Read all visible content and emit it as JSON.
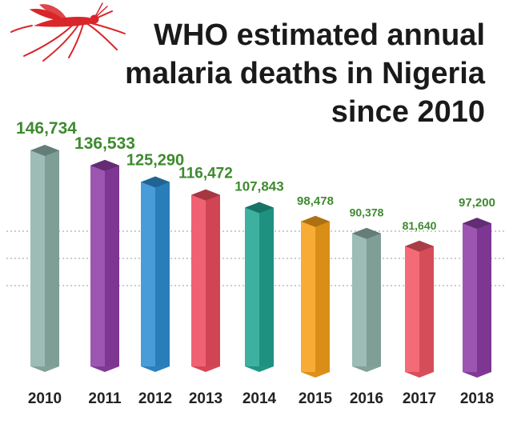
{
  "header": {
    "title_lines": [
      "WHO estimated annual",
      "malaria deaths in Nigeria",
      "since 2010"
    ],
    "icon": "mosquito-icon"
  },
  "colors": {
    "value_label": "#3e8a2f",
    "title": "#1a1a1a",
    "mosquito": "#d8262b",
    "gridline": "#9a9a9a"
  },
  "chart_data": {
    "type": "bar",
    "title": "WHO estimated annual malaria deaths in Nigeria since 2010",
    "categories": [
      "2010",
      "2011",
      "2012",
      "2013",
      "2014",
      "2015",
      "2016",
      "2017",
      "2018"
    ],
    "values": [
      146734,
      136533,
      125290,
      116472,
      107843,
      98478,
      90378,
      81640,
      97200
    ],
    "value_labels": [
      "146,734",
      "136,533",
      "125,290",
      "116,472",
      "107,843",
      "98,478",
      "90,378",
      "81,640",
      "97,200"
    ],
    "bar_colors": [
      "#8fb3ab",
      "#8e3fa6",
      "#2f8fd3",
      "#ee4d60",
      "#22a593",
      "#f7a11a",
      "#8fb3ab",
      "#f25765",
      "#8e3fa6"
    ],
    "ylim": [
      0,
      150000
    ],
    "xlabel": "",
    "ylabel": "",
    "grid": true,
    "legend": "none"
  }
}
